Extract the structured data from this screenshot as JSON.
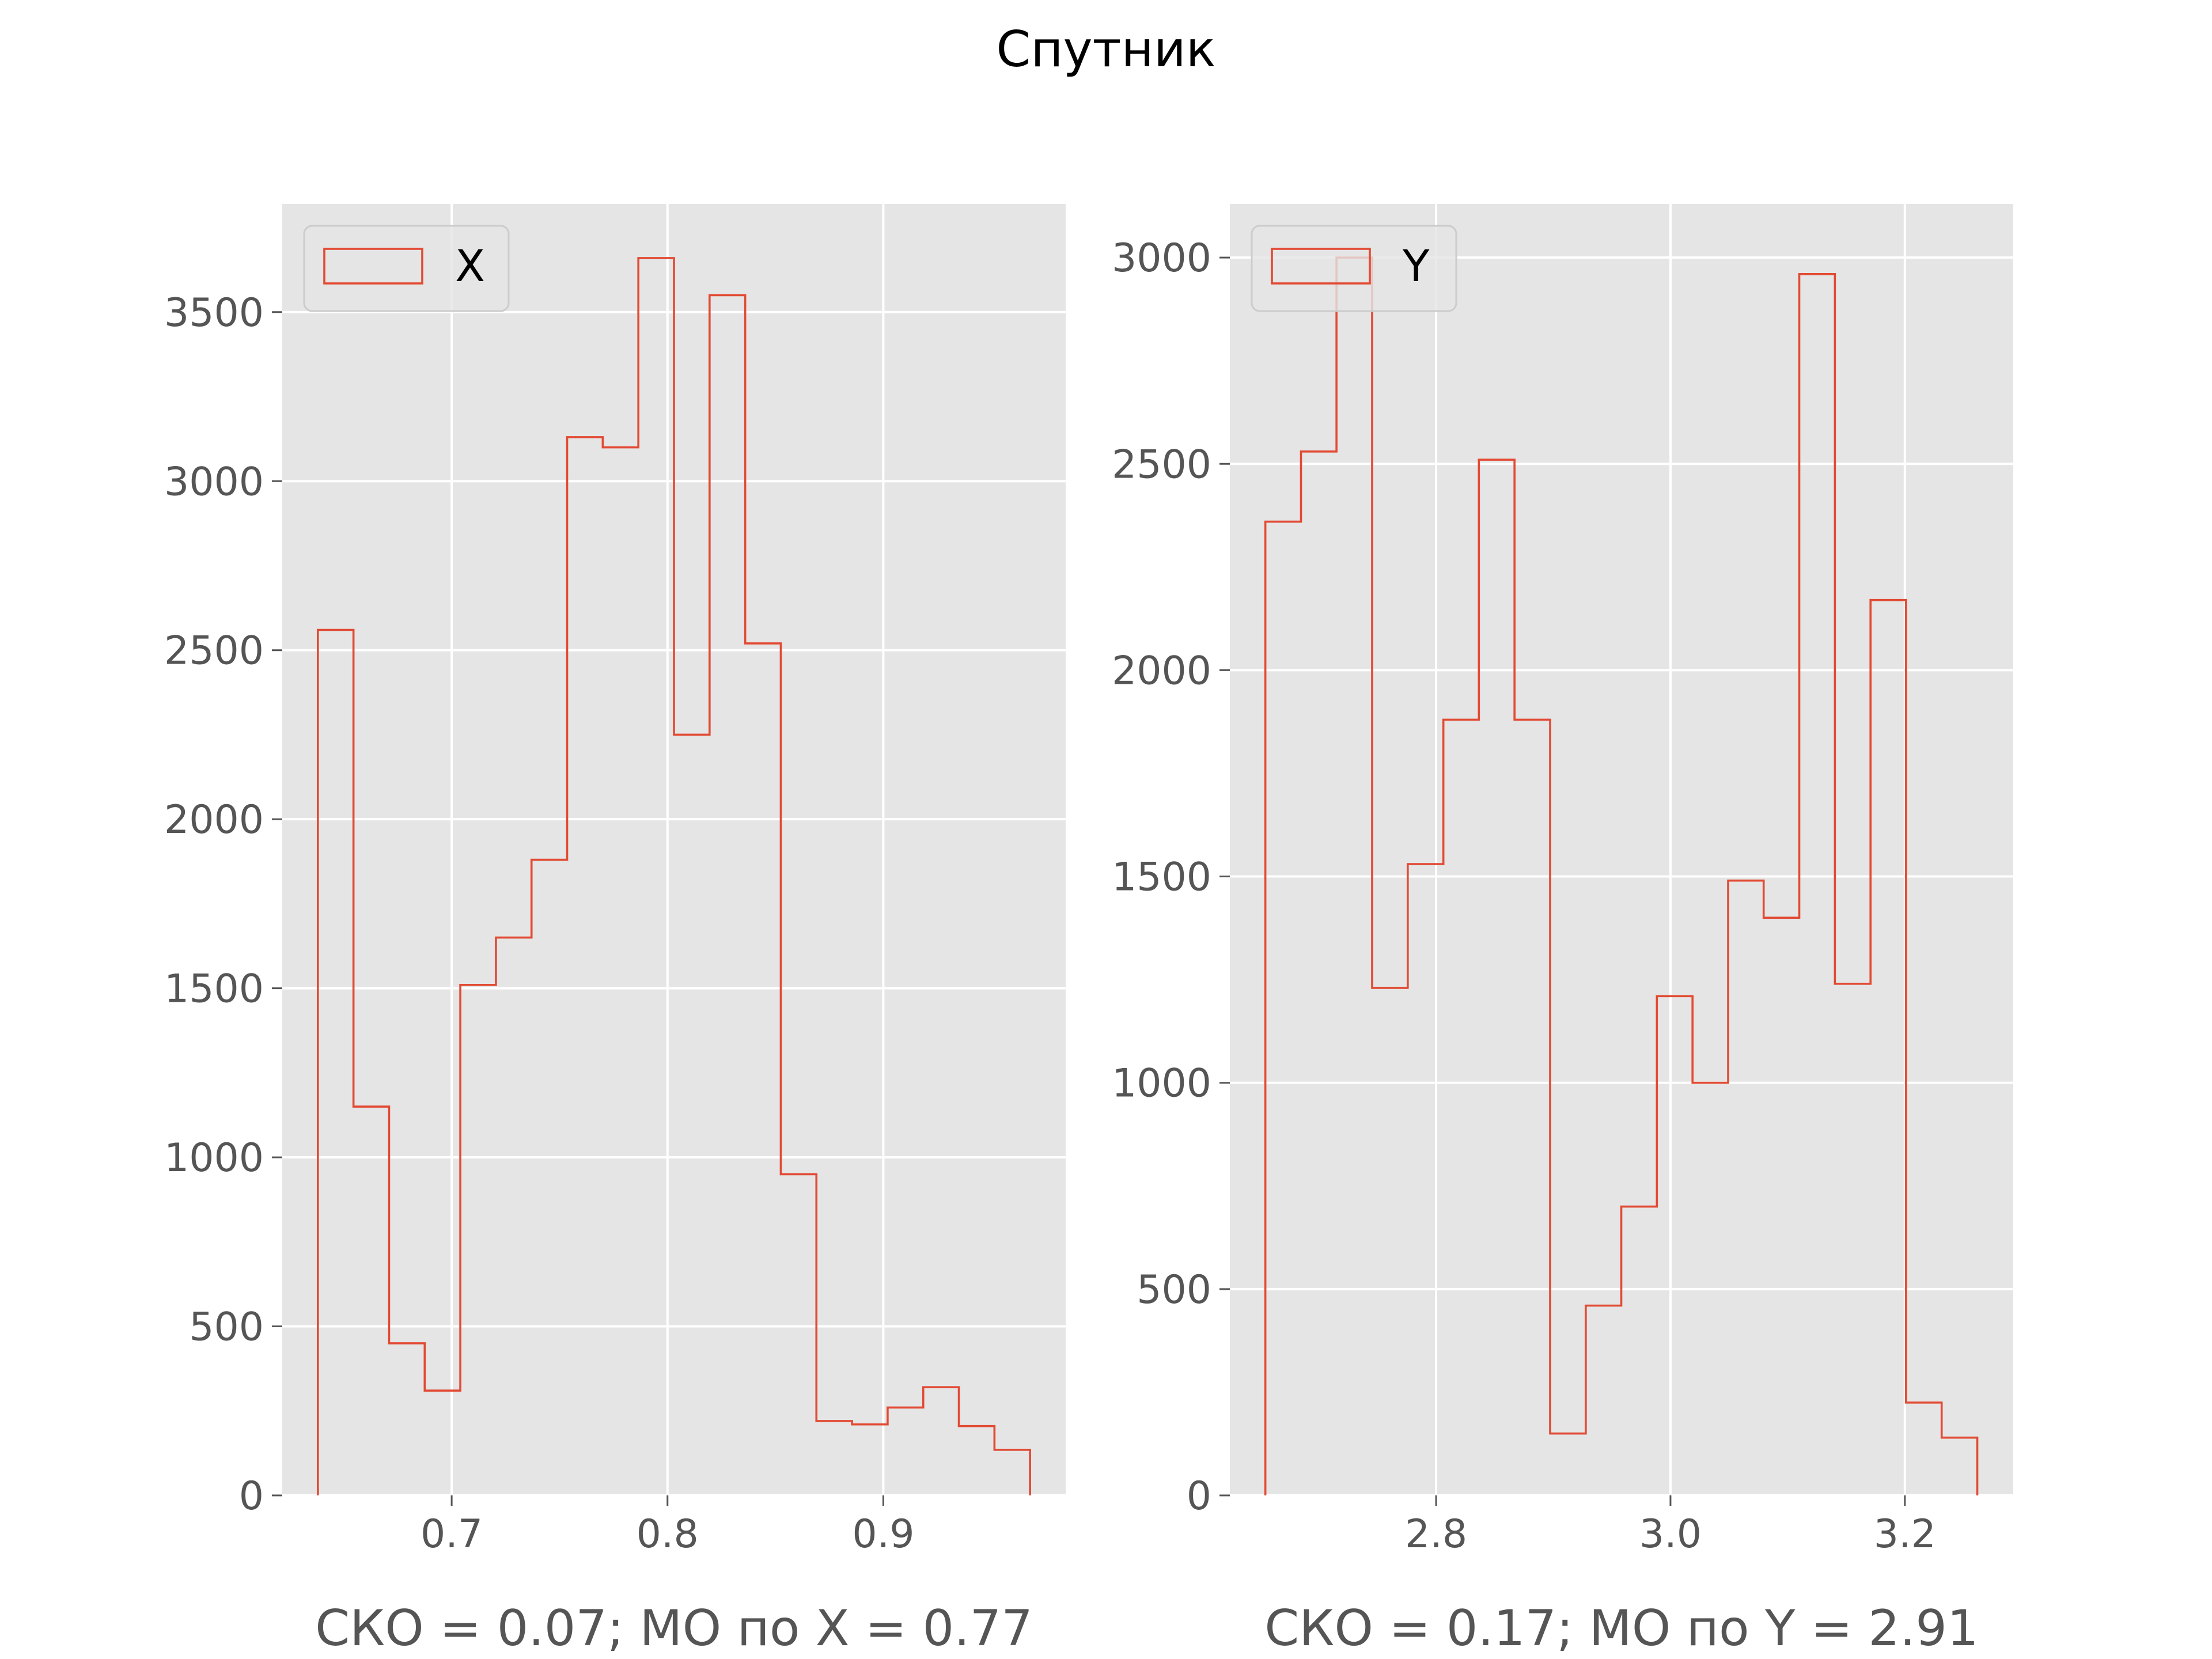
{
  "figure": {
    "suptitle": "Спутник"
  },
  "colors": {
    "axes_bg": "#E5E5E5",
    "grid": "#FFFFFF",
    "hist": "#E24A33",
    "tick_label": "#555555",
    "legend_bg": "#E5E5E5"
  },
  "chart_data": [
    {
      "type": "histogram",
      "histtype": "step",
      "series": [
        {
          "name": "X"
        }
      ],
      "legend": {
        "label": "X",
        "position": "upper-left"
      },
      "xlabel": "СКО = 0.07; МО по X = 0.77",
      "xlim": [
        0.6215,
        0.9845
      ],
      "ylim": [
        0,
        3820
      ],
      "xticks": [
        0.7,
        0.8,
        0.9
      ],
      "xtick_labels": [
        "0.7",
        "0.8",
        "0.9"
      ],
      "yticks": [
        0,
        500,
        1000,
        1500,
        2000,
        2500,
        3000,
        3500
      ],
      "ytick_labels": [
        "0",
        "500",
        "1000",
        "1500",
        "2000",
        "2500",
        "3000",
        "3500"
      ],
      "grid": true,
      "bin_edges": [
        0.638,
        0.6545,
        0.671,
        0.6875,
        0.704,
        0.7205,
        0.737,
        0.7535,
        0.77,
        0.7865,
        0.803,
        0.8195,
        0.836,
        0.8525,
        0.869,
        0.8855,
        0.902,
        0.9185,
        0.935,
        0.9515,
        0.968
      ],
      "counts": [
        2560,
        1150,
        450,
        310,
        1510,
        1650,
        1880,
        3130,
        3100,
        3660,
        2250,
        3550,
        2520,
        950,
        220,
        210,
        260,
        320,
        205,
        135
      ]
    },
    {
      "type": "histogram",
      "histtype": "step",
      "series": [
        {
          "name": "Y"
        }
      ],
      "legend": {
        "label": "Y",
        "position": "upper-left"
      },
      "xlabel": "СКО = 0.17; МО по Y = 2.91",
      "xlim": [
        2.624,
        3.2925
      ],
      "ylim": [
        0,
        3130
      ],
      "xticks": [
        2.8,
        3.0,
        3.2
      ],
      "xtick_labels": [
        "2.8",
        "3.0",
        "3.2"
      ],
      "yticks": [
        0,
        500,
        1000,
        1500,
        2000,
        2500,
        3000
      ],
      "ytick_labels": [
        "0",
        "500",
        "1000",
        "1500",
        "2000",
        "2500",
        "3000"
      ],
      "grid": true,
      "bin_edges": [
        2.6543,
        2.6847,
        2.715,
        2.7454,
        2.7758,
        2.8062,
        2.8365,
        2.8669,
        2.8973,
        2.9277,
        2.958,
        2.9884,
        3.0188,
        3.0492,
        3.0795,
        3.1099,
        3.1403,
        3.1707,
        3.201,
        3.2314,
        3.2618
      ],
      "counts": [
        2360,
        2530,
        3000,
        1230,
        1530,
        1880,
        2510,
        1880,
        150,
        460,
        700,
        1210,
        1000,
        1490,
        1400,
        2960,
        1240,
        2170,
        225,
        140
      ]
    }
  ]
}
